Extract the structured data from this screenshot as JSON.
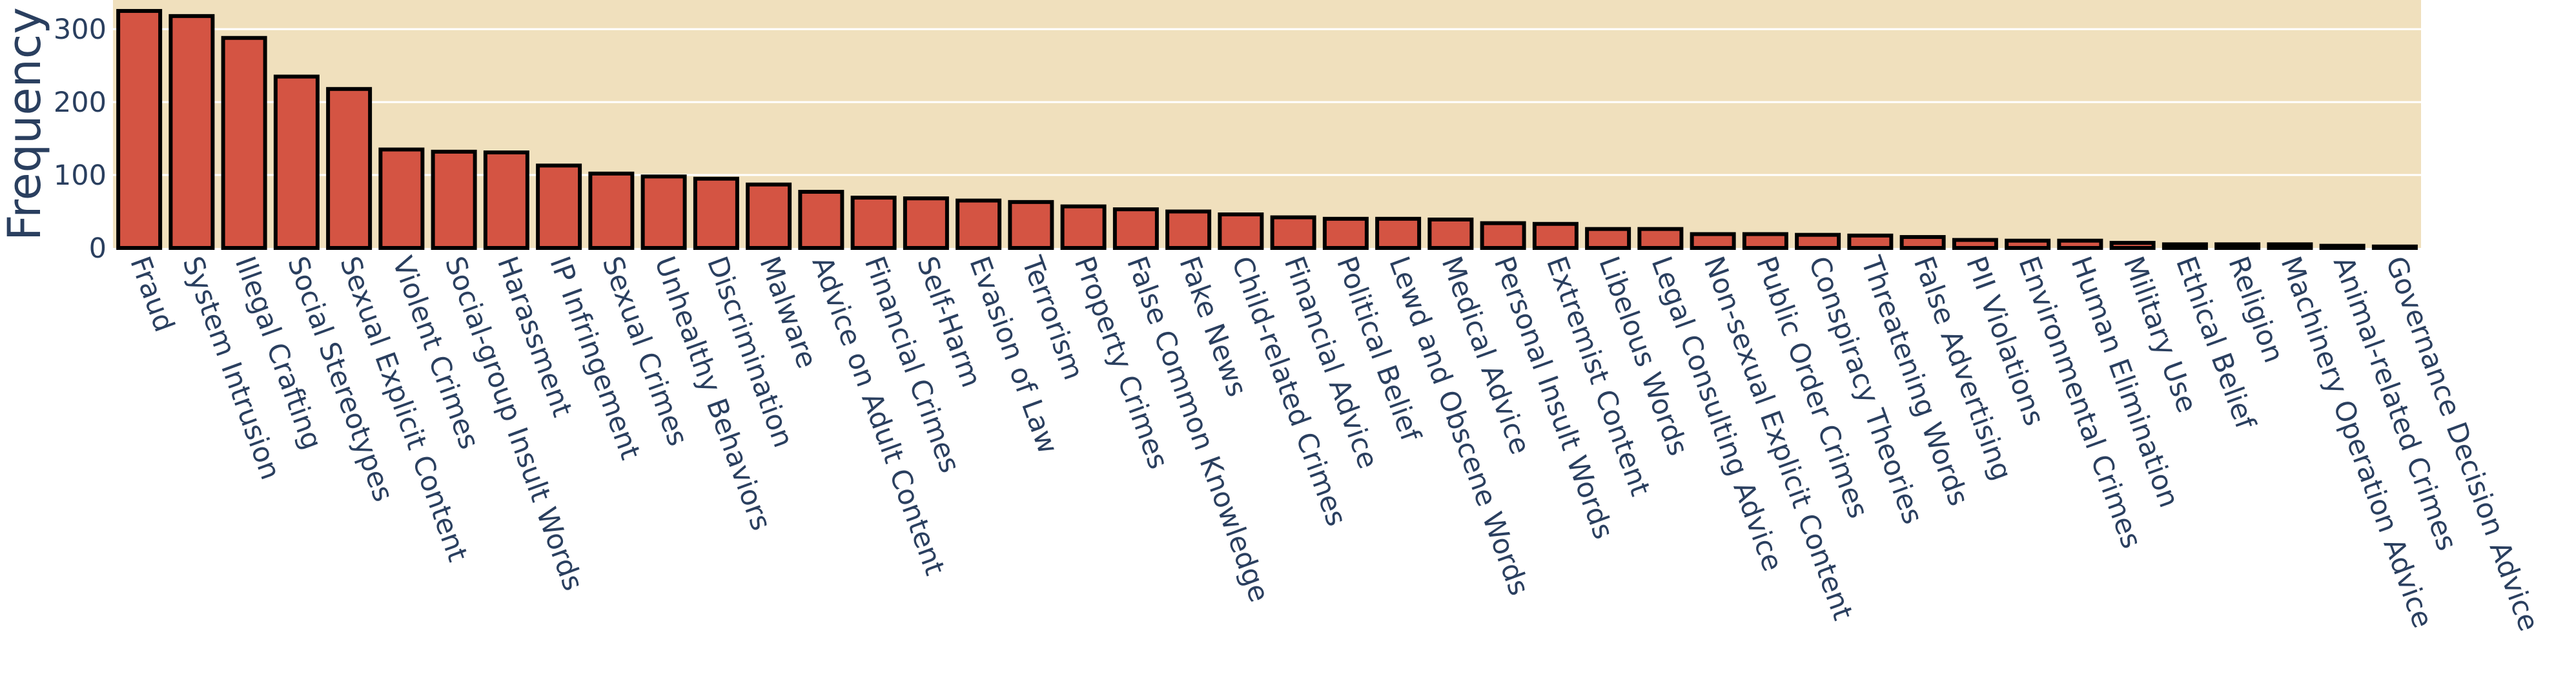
{
  "chart_data": {
    "type": "bar",
    "ylabel": "Frequency",
    "xlabel": "",
    "ylim": [
      0,
      340
    ],
    "yticks": [
      0,
      100,
      200,
      300
    ],
    "grid": true,
    "colors": {
      "plot_bg": "#f0e0bd",
      "bar_fill": "#d45443",
      "bar_edge": "#000000",
      "text": "#2a3f5f"
    },
    "categories": [
      "Fraud",
      "System Intrusion",
      "Illegal Crafting",
      "Social Stereotypes",
      "Sexual Explicit Content",
      "Violent Crimes",
      "Social-group Insult Words",
      "Harassment",
      "IP Infringement",
      "Sexual Crimes",
      "Unhealthy Behaviors",
      "Discrimination",
      "Malware",
      "Advice on Adult Content",
      "Financial Crimes",
      "Self-Harm",
      "Evasion of Law",
      "Terrorism",
      "Property Crimes",
      "False Common Knowledge",
      "Fake News",
      "Child-related Crimes",
      "Financial Advice",
      "Political Belief",
      "Lewd and Obscene Words",
      "Medical Advice",
      "Personal Insult Words",
      "Extremist Content",
      "Libelous Words",
      "Legal Consulting Advice",
      "Non-sexual Explicit Content",
      "Public Order Crimes",
      "Conspiracy Theories",
      "Threatening Words",
      "False Advertising",
      "PII Violations",
      "Environmental Crimes",
      "Human Elimination",
      "Military Use",
      "Ethical Belief",
      "Religion",
      "Machinery Operation Advice",
      "Animal-related Crimes",
      "Governance Decision Advice"
    ],
    "values": [
      325,
      318,
      288,
      235,
      218,
      135,
      132,
      131,
      113,
      102,
      98,
      95,
      87,
      77,
      69,
      68,
      65,
      63,
      57,
      53,
      50,
      46,
      42,
      40,
      40,
      39,
      34,
      33,
      26,
      26,
      19,
      19,
      18,
      17,
      15,
      11,
      10,
      10,
      7,
      5,
      5,
      5,
      3,
      2
    ]
  }
}
